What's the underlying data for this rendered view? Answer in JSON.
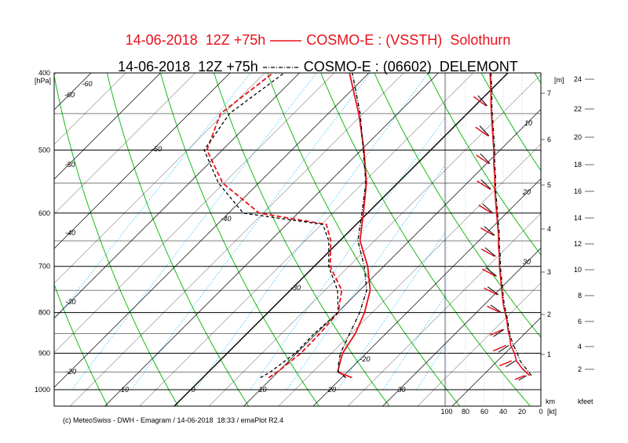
{
  "titles": {
    "line1": {
      "date": "14-06-2018",
      "run": "12Z +75h",
      "model": "COSMO-E : (VSSTH)",
      "station": "Solothurn",
      "color": "#e8101a",
      "style": "solid"
    },
    "line2": {
      "date": "14-06-2018",
      "run": "12Z +75h",
      "model": "COSMO-E : (06602)",
      "station": "DELEMONT",
      "color": "#000000",
      "style": "dash-dot"
    }
  },
  "credit": "(c) MeteoSwiss - DWH - Emagram / 14-06-2018  18:33 / emaPlot R2.4",
  "chart_data": {
    "type": "line",
    "chart_kind": "emagram",
    "y_axis": {
      "scale": "log",
      "unit_label": "[hPa]",
      "range": [
        400,
        1000
      ],
      "ticks": [
        "400",
        "500",
        "600",
        "700",
        "800",
        "900",
        "1000"
      ]
    },
    "x_axis": {
      "range": [
        -30,
        35
      ],
      "ticks": [
        "-10",
        "0",
        "10",
        "20",
        "30"
      ]
    },
    "isotherm_labels": [
      "-60",
      "-50",
      "-40",
      "-30",
      "-20",
      "-60",
      "-50",
      "-40",
      "-30",
      "-20"
    ],
    "height_axis_m": {
      "label": "[m]",
      "ticks": [
        "1",
        "2",
        "3",
        "4",
        "5",
        "6",
        "7"
      ]
    },
    "height_axis_kfeet": {
      "label": "kfeet",
      "ticks": [
        "2",
        "4",
        "6",
        "8",
        "10",
        "12",
        "14",
        "16",
        "18",
        "20",
        "22",
        "24"
      ]
    },
    "km_label": "km",
    "mixing_ratio_labels": [
      "10",
      "20",
      "30"
    ],
    "wind_axis": {
      "unit": "[kt]",
      "ticks": [
        "100",
        "80",
        "60",
        "40",
        "20",
        "0"
      ],
      "range": [
        0,
        100
      ]
    },
    "series": [
      {
        "name": "Solothurn",
        "color": "#e8101a",
        "temperature": [
          [
            966,
            21.5
          ],
          [
            950,
            18.6
          ],
          [
            925,
            17.6
          ],
          [
            900,
            16.6
          ],
          [
            850,
            15.6
          ],
          [
            800,
            13.9
          ],
          [
            750,
            11.5
          ],
          [
            700,
            7.7
          ],
          [
            650,
            2.9
          ],
          [
            600,
            -0.6
          ],
          [
            550,
            -4.5
          ],
          [
            500,
            -9.6
          ],
          [
            450,
            -15.6
          ],
          [
            400,
            -22.8
          ]
        ],
        "dewpoint": [
          [
            966,
            9.5
          ],
          [
            950,
            9.9
          ],
          [
            900,
            10.6
          ],
          [
            850,
            10.5
          ],
          [
            800,
            10.1
          ],
          [
            750,
            7.4
          ],
          [
            700,
            2.3
          ],
          [
            650,
            -1.3
          ],
          [
            620,
            -4.3
          ],
          [
            600,
            -15.6
          ],
          [
            550,
            -25.2
          ],
          [
            500,
            -32.2
          ],
          [
            450,
            -35.5
          ],
          [
            400,
            -33.8
          ]
        ],
        "wind_kt": [
          [
            960,
            12
          ],
          [
            940,
            20
          ],
          [
            920,
            26
          ],
          [
            900,
            28
          ],
          [
            880,
            32
          ],
          [
            860,
            33
          ],
          [
            840,
            35
          ],
          [
            820,
            36
          ],
          [
            800,
            38
          ],
          [
            780,
            40
          ],
          [
            760,
            41
          ],
          [
            740,
            42
          ],
          [
            720,
            43
          ],
          [
            700,
            44
          ],
          [
            680,
            44
          ],
          [
            660,
            45
          ],
          [
            640,
            45
          ],
          [
            620,
            46
          ],
          [
            600,
            47
          ],
          [
            580,
            48
          ],
          [
            560,
            49
          ],
          [
            540,
            49
          ],
          [
            520,
            50
          ],
          [
            500,
            50
          ],
          [
            480,
            51
          ],
          [
            460,
            52
          ],
          [
            440,
            53
          ],
          [
            420,
            53
          ],
          [
            400,
            54
          ]
        ]
      },
      {
        "name": "DELEMONT",
        "color": "#000000",
        "temperature": [
          [
            966,
            20.6
          ],
          [
            950,
            18.7
          ],
          [
            925,
            17.4
          ],
          [
            900,
            16.3
          ],
          [
            850,
            14.8
          ],
          [
            800,
            13.2
          ],
          [
            750,
            11.0
          ],
          [
            700,
            7.2
          ],
          [
            650,
            2.6
          ],
          [
            600,
            -0.8
          ],
          [
            550,
            -4.6
          ],
          [
            500,
            -9.7
          ],
          [
            450,
            -15.4
          ],
          [
            400,
            -22.4
          ]
        ],
        "dewpoint": [
          [
            966,
            8.3
          ],
          [
            950,
            8.9
          ],
          [
            900,
            9.8
          ],
          [
            850,
            9.7
          ],
          [
            800,
            10.1
          ],
          [
            750,
            6.8
          ],
          [
            700,
            2.1
          ],
          [
            650,
            -1.6
          ],
          [
            620,
            -4.8
          ],
          [
            600,
            -17.9
          ],
          [
            550,
            -25.8
          ],
          [
            500,
            -32.6
          ],
          [
            450,
            -34.2
          ],
          [
            400,
            -32.2
          ]
        ],
        "wind_kt": [
          [
            960,
            10
          ],
          [
            940,
            16
          ],
          [
            920,
            22
          ],
          [
            900,
            25
          ],
          [
            880,
            29
          ],
          [
            860,
            32
          ],
          [
            840,
            34
          ],
          [
            820,
            35
          ],
          [
            800,
            37
          ],
          [
            780,
            39
          ],
          [
            760,
            40
          ],
          [
            740,
            41
          ],
          [
            720,
            42
          ],
          [
            700,
            43
          ],
          [
            680,
            43
          ],
          [
            660,
            44
          ],
          [
            640,
            44
          ],
          [
            620,
            45
          ],
          [
            600,
            46
          ],
          [
            580,
            47
          ],
          [
            560,
            48
          ],
          [
            540,
            48
          ],
          [
            520,
            49
          ],
          [
            500,
            49
          ],
          [
            480,
            50
          ],
          [
            460,
            51
          ],
          [
            440,
            52
          ],
          [
            420,
            52
          ],
          [
            400,
            53
          ]
        ]
      }
    ],
    "colors": {
      "isotherm": "#000000",
      "dry_adiabat": "#00b400",
      "mixing_ratio": "#55ccff",
      "frame": "#000000"
    }
  }
}
